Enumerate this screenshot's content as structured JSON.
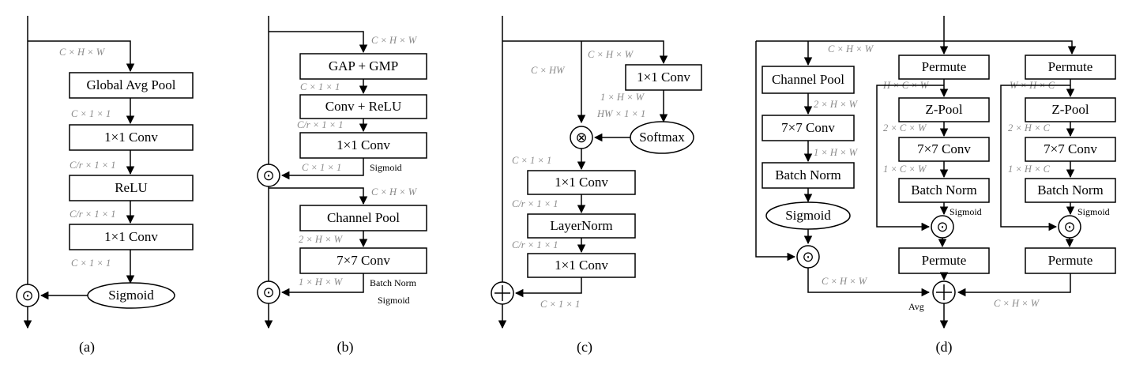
{
  "colors": {
    "line": "#000000",
    "dimension_text": "#8a8a8a",
    "background": "#ffffff"
  },
  "operators": {
    "multiply_dot": "⊙",
    "times": "⊗",
    "plus": "+"
  },
  "a": {
    "caption": "(a)",
    "input_dim": "C × H × W",
    "gap": "Global Avg Pool",
    "d1": "C × 1 × 1",
    "conv1": "1×1 Conv",
    "d2": "C/r × 1 × 1",
    "relu": "ReLU",
    "d3": "C/r × 1 × 1",
    "conv2": "1×1 Conv",
    "d4": "C × 1 × 1",
    "sigmoid": "Sigmoid"
  },
  "b": {
    "caption": "(b)",
    "d0": "C × H × W",
    "gapgmp": "GAP + GMP",
    "d1": "C × 1 × 1",
    "convrelu": "Conv + ReLU",
    "d2": "C/r × 1 × 1",
    "conv": "1×1 Conv",
    "d3": "C × 1 × 1",
    "sigmoid_note": "Sigmoid",
    "d4": "C × H × W",
    "chpool": "Channel Pool",
    "d5": "2 × H × W",
    "conv7": "7×7 Conv",
    "d6": "1 × H × W",
    "bn_note": "Batch Norm",
    "sig_note2": "Sigmoid"
  },
  "c": {
    "caption": "(c)",
    "d_top": "C × H × W",
    "d_hw": "C × HW",
    "conv_top": "1×1 Conv",
    "d_1hw": "1 × H × W",
    "d_hw11": "HW × 1 × 1",
    "softmax": "Softmax",
    "d_c11": "C × 1 × 1",
    "conv1": "1×1 Conv",
    "d_cr1": "C/r × 1 × 1",
    "layernorm": "LayerNorm",
    "d_cr2": "C/r × 1 × 1",
    "conv2": "1×1 Conv",
    "d_out": "C × 1 × 1"
  },
  "d": {
    "caption": "(d)",
    "d_top": "C × H × W",
    "b1": {
      "chpool": "Channel Pool",
      "d1": "2 × H × W",
      "conv7": "7×7 Conv",
      "d2": "1 × H × W",
      "bn": "Batch Norm",
      "sigmoid": "Sigmoid"
    },
    "b2": {
      "permute": "Permute",
      "d1": "H × C × W",
      "zpool": "Z-Pool",
      "d2": "2 × C × W",
      "conv7": "7×7 Conv",
      "d3": "1 × C × W",
      "bn": "Batch Norm",
      "sig_note": "Sigmoid",
      "permute2": "Permute"
    },
    "b3": {
      "permute": "Permute",
      "d1": "W × H × C",
      "zpool": "Z-Pool",
      "d2": "2 × H × C",
      "conv7": "7×7 Conv",
      "d3": "1 × H × C",
      "bn": "Batch Norm",
      "sig_note": "Sigmoid",
      "permute2": "Permute"
    },
    "d_out_left": "C × H × W",
    "avg_note": "Avg",
    "d_out_right": "C × H × W"
  }
}
